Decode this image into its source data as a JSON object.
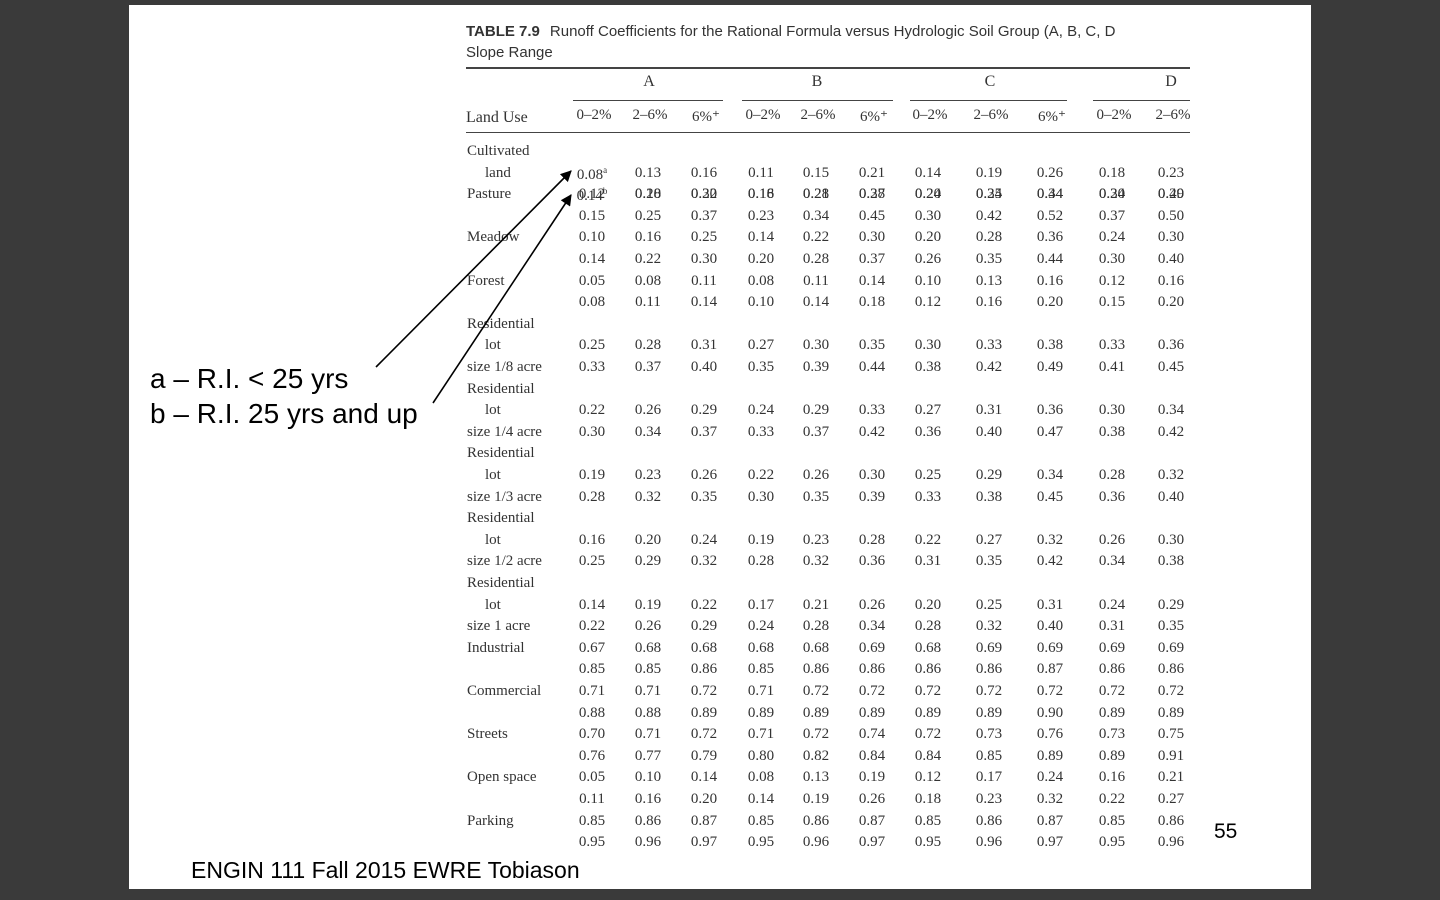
{
  "table": {
    "label": "TABLE 7.9",
    "caption_line1": "Runoff Coefficients for the Rational Formula versus Hydrologic Soil Group (A, B, C, D",
    "caption_line2": "Slope Range",
    "land_use_header": "Land Use",
    "groups": [
      "A",
      "B",
      "C",
      "D"
    ],
    "columns": [
      "0–2%",
      "2–6%",
      "6%⁺",
      "0–2%",
      "2–6%",
      "6%⁺",
      "0–2%",
      "2–6%",
      "6%⁺",
      "0–2%",
      "2–6%"
    ],
    "sections": [
      {
        "label": [
          "Cultivated",
          "land"
        ],
        "rows": [
          [
            "0.08",
            "0.13",
            "0.16",
            "0.11",
            "0.15",
            "0.21",
            "0.14",
            "0.19",
            "0.26",
            "0.18",
            "0.23"
          ],
          [
            "0.14",
            "0.18",
            "0.22",
            "0.16",
            "0.21",
            "0.28",
            "0.20",
            "0.25",
            "0.34",
            "0.24",
            "0.29"
          ]
        ]
      },
      {
        "label": [
          "Pasture"
        ],
        "rows": [
          [
            "0.12",
            "0.20",
            "0.30",
            "0.18",
            "0.28",
            "0.37",
            "0.24",
            "0.34",
            "0.44",
            "0.30",
            "0.40"
          ],
          [
            "0.15",
            "0.25",
            "0.37",
            "0.23",
            "0.34",
            "0.45",
            "0.30",
            "0.42",
            "0.52",
            "0.37",
            "0.50"
          ]
        ]
      },
      {
        "label": [
          "Meadow"
        ],
        "rows": [
          [
            "0.10",
            "0.16",
            "0.25",
            "0.14",
            "0.22",
            "0.30",
            "0.20",
            "0.28",
            "0.36",
            "0.24",
            "0.30"
          ],
          [
            "0.14",
            "0.22",
            "0.30",
            "0.20",
            "0.28",
            "0.37",
            "0.26",
            "0.35",
            "0.44",
            "0.30",
            "0.40"
          ]
        ]
      },
      {
        "label": [
          "Forest"
        ],
        "rows": [
          [
            "0.05",
            "0.08",
            "0.11",
            "0.08",
            "0.11",
            "0.14",
            "0.10",
            "0.13",
            "0.16",
            "0.12",
            "0.16"
          ],
          [
            "0.08",
            "0.11",
            "0.14",
            "0.10",
            "0.14",
            "0.18",
            "0.12",
            "0.16",
            "0.20",
            "0.15",
            "0.20"
          ]
        ]
      },
      {
        "label": [
          "Residential",
          "lot",
          "size 1/8 acre"
        ],
        "rows": [
          [
            "0.25",
            "0.28",
            "0.31",
            "0.27",
            "0.30",
            "0.35",
            "0.30",
            "0.33",
            "0.38",
            "0.33",
            "0.36"
          ],
          [
            "0.33",
            "0.37",
            "0.40",
            "0.35",
            "0.39",
            "0.44",
            "0.38",
            "0.42",
            "0.49",
            "0.41",
            "0.45"
          ]
        ]
      },
      {
        "label": [
          "Residential",
          "lot",
          "size 1/4 acre"
        ],
        "rows": [
          [
            "0.22",
            "0.26",
            "0.29",
            "0.24",
            "0.29",
            "0.33",
            "0.27",
            "0.31",
            "0.36",
            "0.30",
            "0.34"
          ],
          [
            "0.30",
            "0.34",
            "0.37",
            "0.33",
            "0.37",
            "0.42",
            "0.36",
            "0.40",
            "0.47",
            "0.38",
            "0.42"
          ]
        ]
      },
      {
        "label": [
          "Residential",
          "lot",
          "size 1/3 acre"
        ],
        "rows": [
          [
            "0.19",
            "0.23",
            "0.26",
            "0.22",
            "0.26",
            "0.30",
            "0.25",
            "0.29",
            "0.34",
            "0.28",
            "0.32"
          ],
          [
            "0.28",
            "0.32",
            "0.35",
            "0.30",
            "0.35",
            "0.39",
            "0.33",
            "0.38",
            "0.45",
            "0.36",
            "0.40"
          ]
        ]
      },
      {
        "label": [
          "Residential",
          "lot",
          "size 1/2 acre"
        ],
        "rows": [
          [
            "0.16",
            "0.20",
            "0.24",
            "0.19",
            "0.23",
            "0.28",
            "0.22",
            "0.27",
            "0.32",
            "0.26",
            "0.30"
          ],
          [
            "0.25",
            "0.29",
            "0.32",
            "0.28",
            "0.32",
            "0.36",
            "0.31",
            "0.35",
            "0.42",
            "0.34",
            "0.38"
          ]
        ]
      },
      {
        "label": [
          "Residential",
          "lot",
          "size 1 acre"
        ],
        "rows": [
          [
            "0.14",
            "0.19",
            "0.22",
            "0.17",
            "0.21",
            "0.26",
            "0.20",
            "0.25",
            "0.31",
            "0.24",
            "0.29"
          ],
          [
            "0.22",
            "0.26",
            "0.29",
            "0.24",
            "0.28",
            "0.34",
            "0.28",
            "0.32",
            "0.40",
            "0.31",
            "0.35"
          ]
        ]
      },
      {
        "label": [
          "Industrial"
        ],
        "rows": [
          [
            "0.67",
            "0.68",
            "0.68",
            "0.68",
            "0.68",
            "0.69",
            "0.68",
            "0.69",
            "0.69",
            "0.69",
            "0.69"
          ],
          [
            "0.85",
            "0.85",
            "0.86",
            "0.85",
            "0.86",
            "0.86",
            "0.86",
            "0.86",
            "0.87",
            "0.86",
            "0.86"
          ]
        ]
      },
      {
        "label": [
          "Commercial"
        ],
        "rows": [
          [
            "0.71",
            "0.71",
            "0.72",
            "0.71",
            "0.72",
            "0.72",
            "0.72",
            "0.72",
            "0.72",
            "0.72",
            "0.72"
          ],
          [
            "0.88",
            "0.88",
            "0.89",
            "0.89",
            "0.89",
            "0.89",
            "0.89",
            "0.89",
            "0.90",
            "0.89",
            "0.89"
          ]
        ]
      },
      {
        "label": [
          "Streets"
        ],
        "rows": [
          [
            "0.70",
            "0.71",
            "0.72",
            "0.71",
            "0.72",
            "0.74",
            "0.72",
            "0.73",
            "0.76",
            "0.73",
            "0.75"
          ],
          [
            "0.76",
            "0.77",
            "0.79",
            "0.80",
            "0.82",
            "0.84",
            "0.84",
            "0.85",
            "0.89",
            "0.89",
            "0.91"
          ]
        ]
      },
      {
        "label": [
          "Open space"
        ],
        "rows": [
          [
            "0.05",
            "0.10",
            "0.14",
            "0.08",
            "0.13",
            "0.19",
            "0.12",
            "0.17",
            "0.24",
            "0.16",
            "0.21"
          ],
          [
            "0.11",
            "0.16",
            "0.20",
            "0.14",
            "0.19",
            "0.26",
            "0.18",
            "0.23",
            "0.32",
            "0.22",
            "0.27"
          ]
        ]
      },
      {
        "label": [
          "Parking"
        ],
        "rows": [
          [
            "0.85",
            "0.86",
            "0.87",
            "0.85",
            "0.86",
            "0.87",
            "0.85",
            "0.86",
            "0.87",
            "0.85",
            "0.86"
          ],
          [
            "0.95",
            "0.96",
            "0.97",
            "0.95",
            "0.96",
            "0.97",
            "0.95",
            "0.96",
            "0.97",
            "0.95",
            "0.96"
          ]
        ]
      }
    ],
    "footnote_marks": [
      "a",
      "b"
    ]
  },
  "notes": {
    "a": "a – R.I. < 25 yrs",
    "b": "b – R.I. 25 yrs and up"
  },
  "footer": "ENGIN 111 Fall 2015 EWRE  Tobiason",
  "page_number": "55"
}
